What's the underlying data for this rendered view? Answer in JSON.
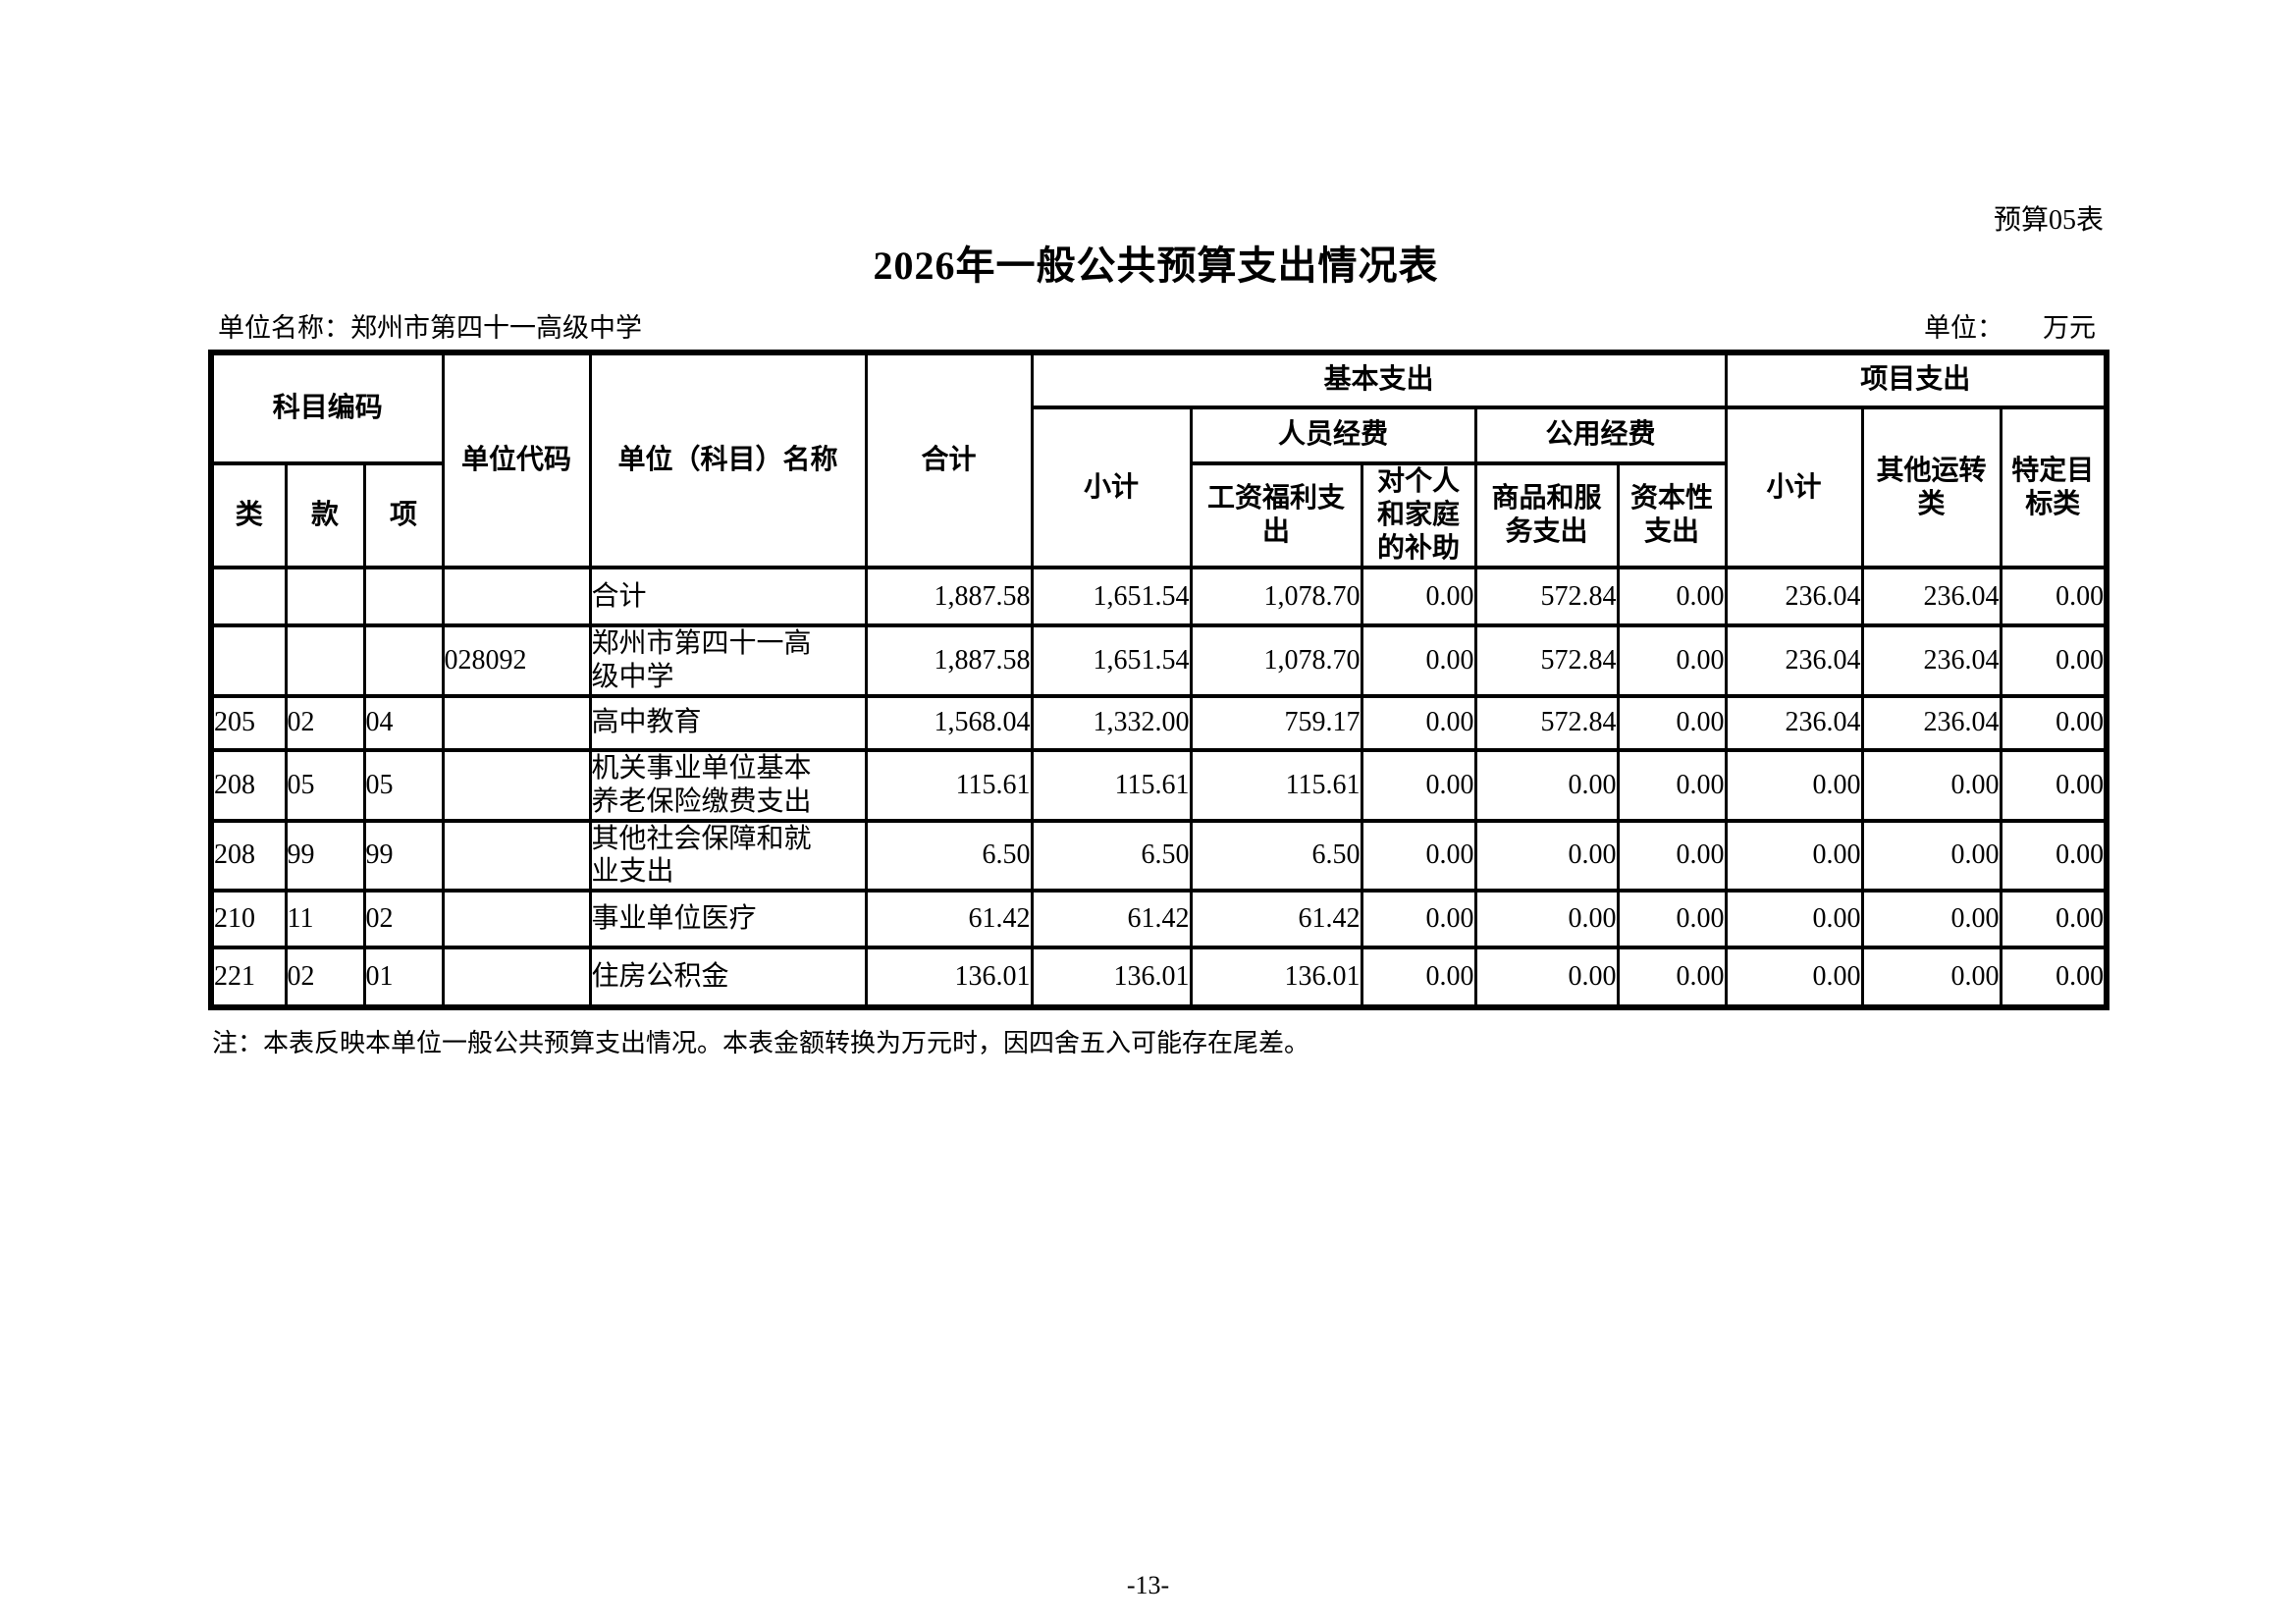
{
  "page": {
    "form_label": "预算05表",
    "title": "2026年一般公共预算支出情况表",
    "unit_name": "单位名称：郑州市第四十一高级中学",
    "unit_label": "单位：",
    "unit_value": "万元",
    "note": "注：本表反映本单位一般公共预算支出情况。本表金额转换为万元时，因四舍五入可能存在尾差。",
    "page_number": "-13-"
  },
  "table": {
    "header": {
      "subject_code": "科目编码",
      "cls": "类",
      "kuan": "款",
      "xiang": "项",
      "unit_code": "单位代码",
      "unit_subject_name": "单位（科目）名称",
      "total": "合计",
      "basic": "基本支出",
      "basic_subtotal": "小计",
      "personnel": "人员经费",
      "salary_welfare": "工资福利支\n出",
      "personal_family_subsidy": "对个人\n和家庭\n的补助",
      "public_funds": "公用经费",
      "goods_services": "商品和服\n务支出",
      "capital": "资本性\n支出",
      "project": "项目支出",
      "project_subtotal": "小计",
      "other_transport": "其他运转\n类",
      "specific_target": "特定目\n标类"
    },
    "rows": [
      {
        "codes": [
          "",
          "",
          ""
        ],
        "unit_code": "",
        "name": "合计",
        "values": [
          "1,887.58",
          "1,651.54",
          "1,078.70",
          "0.00",
          "572.84",
          "0.00",
          "236.04",
          "236.04",
          "0.00"
        ]
      },
      {
        "codes": [
          "",
          "",
          ""
        ],
        "unit_code": "028092",
        "name": "郑州市第四十一高\n级中学",
        "values": [
          "1,887.58",
          "1,651.54",
          "1,078.70",
          "0.00",
          "572.84",
          "0.00",
          "236.04",
          "236.04",
          "0.00"
        ]
      },
      {
        "codes": [
          "205",
          "02",
          "04"
        ],
        "unit_code": "",
        "name": "高中教育",
        "values": [
          "1,568.04",
          "1,332.00",
          "759.17",
          "0.00",
          "572.84",
          "0.00",
          "236.04",
          "236.04",
          "0.00"
        ]
      },
      {
        "codes": [
          "208",
          "05",
          "05"
        ],
        "unit_code": "",
        "name": "机关事业单位基本\n养老保险缴费支出",
        "values": [
          "115.61",
          "115.61",
          "115.61",
          "0.00",
          "0.00",
          "0.00",
          "0.00",
          "0.00",
          "0.00"
        ]
      },
      {
        "codes": [
          "208",
          "99",
          "99"
        ],
        "unit_code": "",
        "name": "其他社会保障和就\n业支出",
        "values": [
          "6.50",
          "6.50",
          "6.50",
          "0.00",
          "0.00",
          "0.00",
          "0.00",
          "0.00",
          "0.00"
        ]
      },
      {
        "codes": [
          "210",
          "11",
          "02"
        ],
        "unit_code": "",
        "name": "事业单位医疗",
        "values": [
          "61.42",
          "61.42",
          "61.42",
          "0.00",
          "0.00",
          "0.00",
          "0.00",
          "0.00",
          "0.00"
        ]
      },
      {
        "codes": [
          "221",
          "02",
          "01"
        ],
        "unit_code": "",
        "name": "住房公积金",
        "values": [
          "136.01",
          "136.01",
          "136.01",
          "0.00",
          "0.00",
          "0.00",
          "0.00",
          "0.00",
          "0.00"
        ]
      }
    ]
  }
}
